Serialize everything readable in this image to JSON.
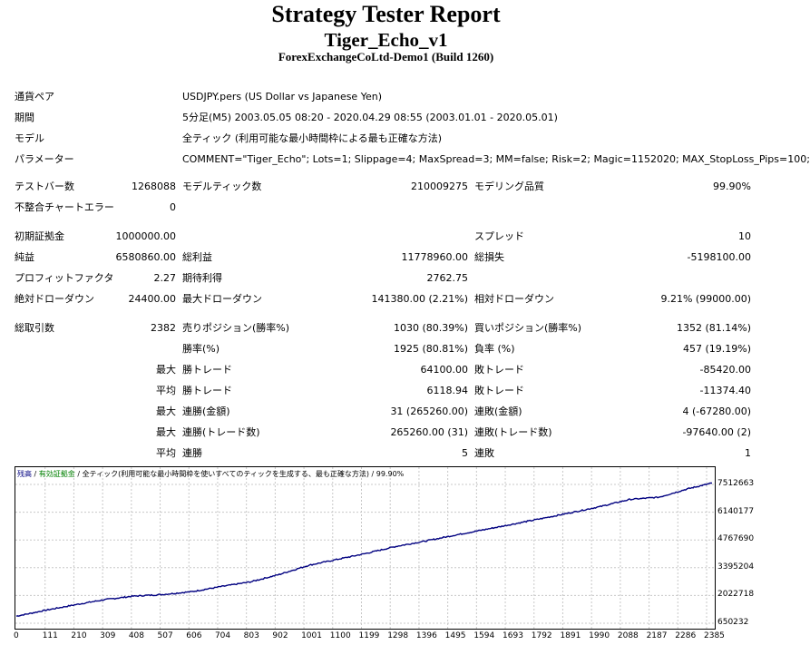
{
  "header": {
    "title": "Strategy Tester Report",
    "ea_name": "Tiger_Echo_v1",
    "server": "ForexExchangeCoLtd-Demo1 (Build 1260)"
  },
  "info": {
    "symbol_label": "通貨ペア",
    "symbol_value": "USDJPY.pers (US Dollar vs Japanese Yen)",
    "period_label": "期間",
    "period_value": "5分足(M5) 2003.05.05 08:20 - 2020.04.29 08:55 (2003.01.01 - 2020.05.01)",
    "model_label": "モデル",
    "model_value": "全ティック (利用可能な最小時間枠による最も正確な方法)",
    "params_label": "パラメーター",
    "params_value": "COMMENT=\"Tiger_Echo\"; Lots=1; Slippage=4; MaxSpread=3; MM=false; Risk=2; Magic=1152020; MAX_StopLoss_Pips=100;"
  },
  "stats": {
    "bars_label": "テストバー数",
    "bars_value": "1268088",
    "ticks_label": "モデルティック数",
    "ticks_value": "210009275",
    "quality_label": "モデリング品質",
    "quality_value": "99.90%",
    "mismatch_label": "不整合チャートエラー",
    "mismatch_value": "0",
    "deposit_label": "初期証拠金",
    "deposit_value": "1000000.00",
    "spread_label": "スプレッド",
    "spread_value": "10",
    "net_label": "純益",
    "net_value": "6580860.00",
    "gross_profit_label": "総利益",
    "gross_profit_value": "11778960.00",
    "gross_loss_label": "総損失",
    "gross_loss_value": "-5198100.00",
    "pf_label": "プロフィットファクタ",
    "pf_value": "2.27",
    "expected_label": "期待利得",
    "expected_value": "2762.75",
    "abs_dd_label": "絶対ドローダウン",
    "abs_dd_value": "24400.00",
    "max_dd_label": "最大ドローダウン",
    "max_dd_value": "141380.00 (2.21%)",
    "rel_dd_label": "相対ドローダウン",
    "rel_dd_value": "9.21% (99000.00)",
    "trades_label": "総取引数",
    "trades_value": "2382",
    "short_label": "売りポジション(勝率%)",
    "short_value": "1030 (80.39%)",
    "long_label": "買いポジション(勝率%)",
    "long_value": "1352 (81.14%)",
    "winrate_label": "勝率(%)",
    "winrate_value": "1925 (80.81%)",
    "lossrate_label": "負率 (%)",
    "lossrate_value": "457 (19.19%)",
    "max_label": "最大",
    "avg_label": "平均",
    "largest_win_label": "勝トレード",
    "largest_win_value": "64100.00",
    "largest_loss_label": "敗トレード",
    "largest_loss_value": "-85420.00",
    "avg_win_label": "勝トレード",
    "avg_win_value": "6118.94",
    "avg_loss_label": "敗トレード",
    "avg_loss_value": "-11374.40",
    "max_consec_win_amt_label": "連勝(金額)",
    "max_consec_win_amt_value": "31 (265260.00)",
    "max_consec_loss_amt_label": "連敗(金額)",
    "max_consec_loss_amt_value": "4 (-67280.00)",
    "max_consec_win_cnt_label": "連勝(トレード数)",
    "max_consec_win_cnt_value": "265260.00 (31)",
    "max_consec_loss_cnt_label": "連敗(トレード数)",
    "max_consec_loss_cnt_value": "-97640.00 (2)",
    "avg_consec_win_label": "連勝",
    "avg_consec_win_value": "5",
    "avg_consec_loss_label": "連敗",
    "avg_consec_loss_value": "1"
  },
  "chart_legend": {
    "balance": "残高",
    "sep1": " / ",
    "equity": "有効証拠金",
    "sep2": " / ",
    "model": "全ティック(利用可能な最小時間枠を使いすべてのティックを生成する、最も正確な方法)",
    "sep3": " / ",
    "quality": "99.90%"
  },
  "chart_data": {
    "type": "line",
    "x_ticks": [
      "0",
      "111",
      "210",
      "309",
      "408",
      "507",
      "606",
      "704",
      "803",
      "902",
      "1001",
      "1100",
      "1199",
      "1298",
      "1396",
      "1495",
      "1594",
      "1693",
      "1792",
      "1891",
      "1990",
      "2088",
      "2187",
      "2286",
      "2385"
    ],
    "y_ticks": [
      "7512663",
      "6140177",
      "4767690",
      "3395204",
      "2022718",
      "650232"
    ],
    "ylim": [
      650232,
      7512663
    ],
    "xlim": [
      0,
      2382
    ],
    "line_color": "#000080",
    "series": [
      {
        "x": [
          0,
          100,
          200,
          300,
          400,
          500,
          600,
          700,
          800,
          900,
          1000,
          1100,
          1200,
          1300,
          1400,
          1500,
          1600,
          1700,
          1800,
          1900,
          2000,
          2100,
          2200,
          2300,
          2382
        ],
        "values": [
          1000000,
          1290000,
          1560000,
          1810000,
          1990000,
          2070000,
          2210000,
          2460000,
          2690000,
          3060000,
          3510000,
          3810000,
          4110000,
          4450000,
          4710000,
          5000000,
          5270000,
          5550000,
          5830000,
          6120000,
          6420000,
          6770000,
          6880000,
          7300000,
          7580000
        ]
      }
    ]
  }
}
